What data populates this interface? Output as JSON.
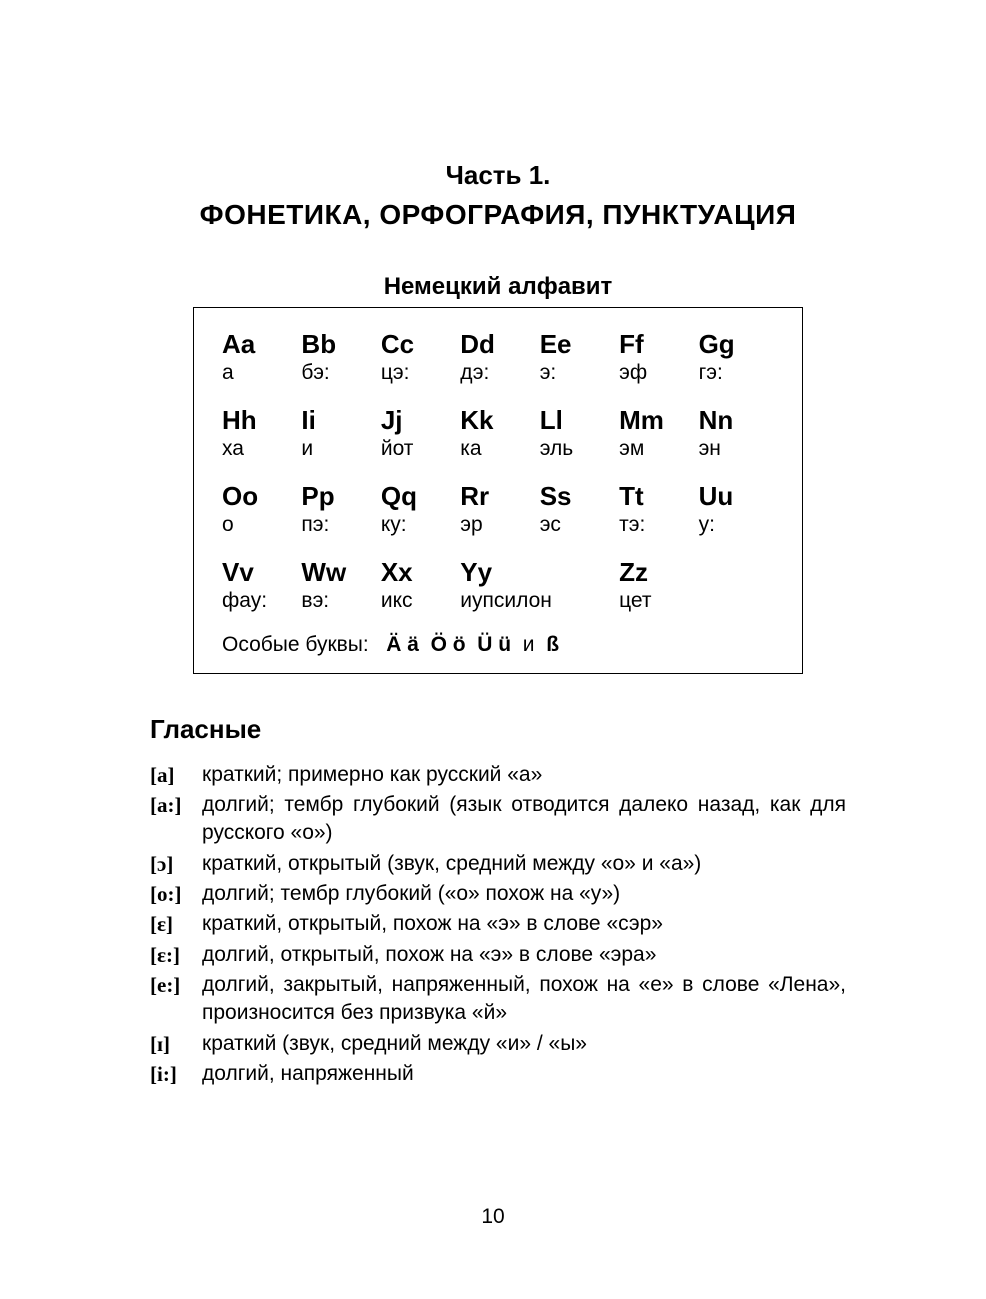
{
  "page_number": "10",
  "part_label": "Часть 1.",
  "title": "ФОНЕТИКА, ОРФОГРАФИЯ, ПУНКТУАЦИЯ",
  "subtitle": "Немецкий алфавит",
  "alphabet": {
    "rows": [
      [
        {
          "letter": "Aa",
          "pron": "а"
        },
        {
          "letter": "Bb",
          "pron": "бэ:"
        },
        {
          "letter": "Cc",
          "pron": "цэ:"
        },
        {
          "letter": "Dd",
          "pron": "дэ:"
        },
        {
          "letter": "Ee",
          "pron": "э:"
        },
        {
          "letter": "Ff",
          "pron": "эф"
        },
        {
          "letter": "Gg",
          "pron": "гэ:"
        }
      ],
      [
        {
          "letter": "Hh",
          "pron": "ха"
        },
        {
          "letter": "Ii",
          "pron": "и"
        },
        {
          "letter": "Jj",
          "pron": "йот"
        },
        {
          "letter": "Kk",
          "pron": "ка"
        },
        {
          "letter": "Ll",
          "pron": "эль"
        },
        {
          "letter": "Mm",
          "pron": "эм"
        },
        {
          "letter": "Nn",
          "pron": "эн"
        }
      ],
      [
        {
          "letter": "Oo",
          "pron": "о"
        },
        {
          "letter": "Pp",
          "pron": "пэ:"
        },
        {
          "letter": "Qq",
          "pron": "ку:"
        },
        {
          "letter": "Rr",
          "pron": "эр"
        },
        {
          "letter": "Ss",
          "pron": "эс"
        },
        {
          "letter": "Tt",
          "pron": "тэ:"
        },
        {
          "letter": "Uu",
          "pron": "у:"
        }
      ],
      [
        {
          "letter": "Vv",
          "pron": "фау:"
        },
        {
          "letter": "Ww",
          "pron": "вэ:"
        },
        {
          "letter": "Xx",
          "pron": "икс"
        },
        {
          "letter": "Yy",
          "pron": "иупсилон",
          "span": 2
        },
        {
          "letter": "Zz",
          "pron": "цет"
        },
        {
          "letter": "",
          "pron": ""
        }
      ]
    ],
    "special_prefix": "Особые буквы:",
    "special_letters": [
      "Ä ä",
      "Ö ö",
      "Ü ü"
    ],
    "special_joiner": "и",
    "special_last": "ß"
  },
  "vowels_heading": "Гласные",
  "vowels": [
    {
      "sym": "[a]",
      "desc": "краткий; примерно как русский «а»"
    },
    {
      "sym": "[a:]",
      "desc": "долгий; тембр глубокий (язык отводится далеко назад, как для русского «о»)"
    },
    {
      "sym": "[ɔ]",
      "desc": "краткий, открытый (звук, средний между «о» и «а»)"
    },
    {
      "sym": "[o:]",
      "desc": "долгий; тембр глубокий («о» похож на «у»)"
    },
    {
      "sym": "[ɛ]",
      "desc": "краткий, открытый, похож на «э» в слове «сэр»"
    },
    {
      "sym": "[ɛ:]",
      "desc": "долгий, открытый, похож на «э» в слове «эра»"
    },
    {
      "sym": "[e:]",
      "desc": "долгий, закрытый, напряженный, похож на «е» в слове «Лена», произносится без призвука «й»"
    },
    {
      "sym": "[ɪ]",
      "desc": "краткий (звук, средний между «и» / «ы»"
    },
    {
      "sym": "[i:]",
      "desc": "долгий, напряженный"
    }
  ],
  "style": {
    "page_bg": "#ffffff",
    "text_color": "#000000",
    "border_color": "#000000",
    "title_fontsize": 28,
    "subtitle_fontsize": 24,
    "body_fontsize": 21,
    "letter_fontsize": 26
  }
}
